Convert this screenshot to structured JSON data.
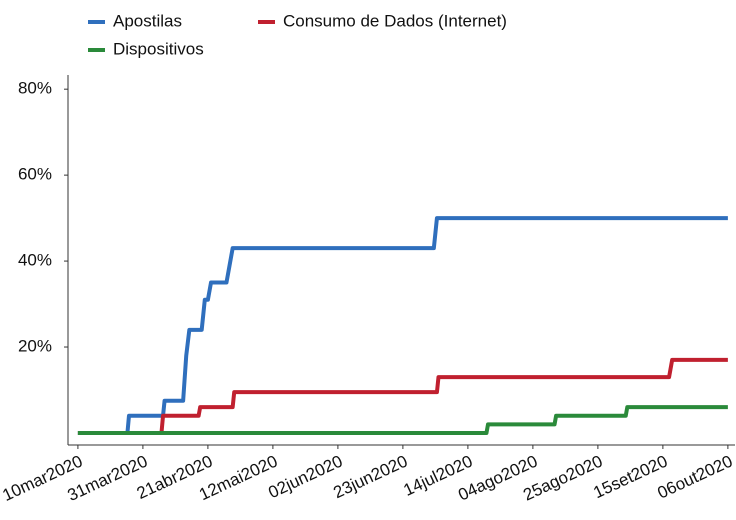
{
  "chart_data": {
    "type": "line",
    "xlim": [
      -3.2,
      212.3
    ],
    "xticks": [
      {
        "value": 0,
        "label": "10mar2020"
      },
      {
        "value": 21,
        "label": "31mar2020"
      },
      {
        "value": 42,
        "label": "21abr2020"
      },
      {
        "value": 63,
        "label": "12mai2020"
      },
      {
        "value": 84,
        "label": "02jun2020"
      },
      {
        "value": 105,
        "label": "23jun2020"
      },
      {
        "value": 126,
        "label": "14jul2020"
      },
      {
        "value": 147,
        "label": "04ago2020"
      },
      {
        "value": 168,
        "label": "25ago2020"
      },
      {
        "value": 189,
        "label": "15set2020"
      },
      {
        "value": 210,
        "label": "06out2020"
      }
    ],
    "ylim": [
      -2.8,
      83.3
    ],
    "yticks": [
      {
        "value": 20,
        "label": "20%"
      },
      {
        "value": 40,
        "label": "40%"
      },
      {
        "value": 60,
        "label": "60%"
      },
      {
        "value": 80,
        "label": "80%"
      }
    ],
    "legend": "top-left",
    "series": [
      {
        "name": "Apostilas",
        "color": "#2f6fbd",
        "x": [
          0,
          16,
          16.5,
          27.5,
          28,
          34,
          35,
          36,
          40,
          41,
          42,
          43,
          48,
          49,
          50,
          115,
          116,
          210
        ],
        "values": [
          0,
          0,
          4,
          4,
          7.5,
          7.5,
          18,
          24,
          24,
          31,
          31,
          35,
          35,
          39,
          43,
          43,
          50,
          50
        ]
      },
      {
        "name": "Consumo de Dados (Internet)",
        "color": "#c0202f",
        "x": [
          0,
          27,
          27.5,
          39,
          39.5,
          50,
          50.5,
          116,
          116.5,
          191,
          192,
          210
        ],
        "values": [
          0,
          0,
          4,
          4,
          6,
          6,
          9.5,
          9.5,
          13,
          13,
          17,
          17
        ]
      },
      {
        "name": "Dispositivos",
        "color": "#2a8a3a",
        "x": [
          0,
          132,
          132.5,
          154,
          154.5,
          177,
          177.5,
          210
        ],
        "values": [
          0,
          0,
          2,
          2,
          4,
          4,
          6,
          6
        ]
      }
    ]
  }
}
